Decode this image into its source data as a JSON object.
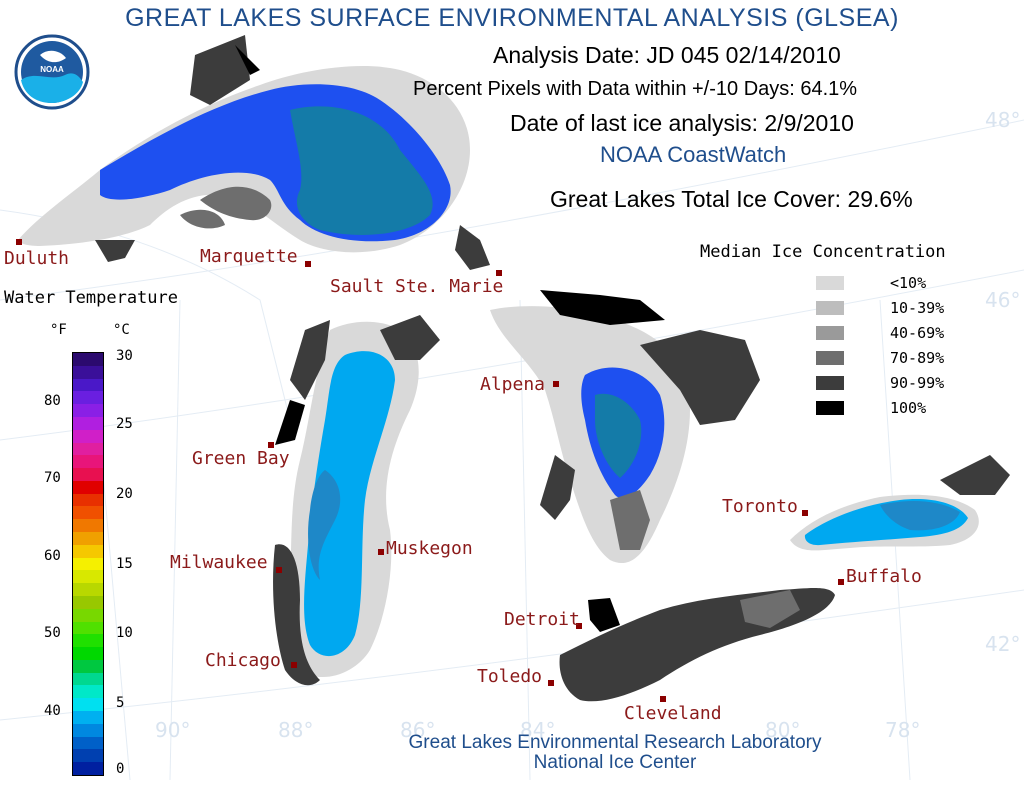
{
  "title": "GREAT LAKES SURFACE ENVIRONMENTAL ANALYSIS (GLSEA)",
  "analysis_date": "Analysis Date:  JD 045 02/14/2010",
  "percent_pixels": "Percent Pixels with Data within +/-10 Days:  64.1%",
  "ice_date": "Date of last ice analysis: 2/9/2010",
  "coastwatch": "NOAA CoastWatch",
  "total_ice": "Great Lakes Total Ice Cover:  29.6%",
  "logo_text": "NOAA",
  "ice_legend": {
    "title": "Median Ice Concentration",
    "items": [
      {
        "label": "<10%",
        "color": "#d9d9d9"
      },
      {
        "label": "10-39%",
        "color": "#bdbdbd"
      },
      {
        "label": "40-69%",
        "color": "#9a9a9a"
      },
      {
        "label": "70-89%",
        "color": "#6e6e6e"
      },
      {
        "label": "90-99%",
        "color": "#3c3c3c"
      },
      {
        "label": "100%",
        "color": "#000000"
      }
    ]
  },
  "water_temp": {
    "title": "Water Temperature",
    "unit_f": "°F",
    "unit_c": "°C",
    "f_ticks": [
      "80",
      "70",
      "60",
      "50",
      "40"
    ],
    "c_ticks": [
      "30",
      "25",
      "20",
      "15",
      "10",
      "5",
      "0"
    ],
    "colors": [
      "#2b0a6e",
      "#3a0f99",
      "#4a18c8",
      "#6a1fe0",
      "#8a1fe6",
      "#b01fe0",
      "#d01fc8",
      "#e01fa0",
      "#e8157a",
      "#e81050",
      "#e00000",
      "#e83000",
      "#f05000",
      "#f07800",
      "#f0a000",
      "#f5c800",
      "#f5f000",
      "#d8e800",
      "#b8d800",
      "#98c800",
      "#78d800",
      "#50e000",
      "#20e000",
      "#00d800",
      "#00c840",
      "#00d890",
      "#00e8c8",
      "#00e0f0",
      "#00b0f0",
      "#0088e0",
      "#0060c8",
      "#0040b0",
      "#0020a0"
    ]
  },
  "cities": [
    {
      "name": "Duluth"
    },
    {
      "name": "Marquette"
    },
    {
      "name": "Sault Ste. Marie"
    },
    {
      "name": "Alpena"
    },
    {
      "name": "Green Bay"
    },
    {
      "name": "Milwaukee"
    },
    {
      "name": "Muskegon"
    },
    {
      "name": "Chicago"
    },
    {
      "name": "Toronto"
    },
    {
      "name": "Buffalo"
    },
    {
      "name": "Detroit"
    },
    {
      "name": "Toledo"
    },
    {
      "name": "Cleveland"
    }
  ],
  "grid_labels": {
    "lat48": "48°",
    "lat46": "46°",
    "lat42": "42°",
    "lon90": "90°",
    "lon88": "88°",
    "lon86": "86°",
    "lon84": "84°",
    "lon80": "80°",
    "lon78": "78°"
  },
  "footer": {
    "line1": "Great Lakes Environmental Research Laboratory",
    "line2": "National Ice Center"
  }
}
